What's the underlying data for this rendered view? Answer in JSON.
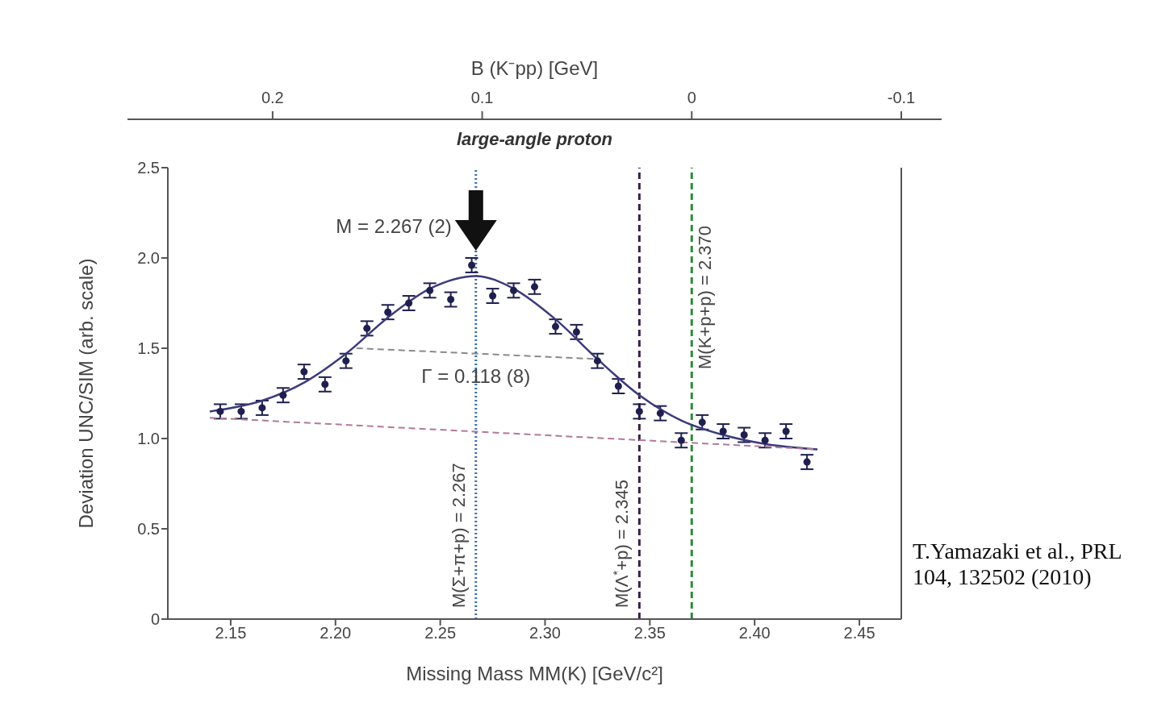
{
  "chart_data": {
    "type": "scatter",
    "title": "large-angle proton",
    "xlabel": "Missing Mass  MM(K)  [GeV/c²]",
    "ylabel": "Deviation  UNC/SIM  (arb. scale)",
    "x2label": "B (K⁻pp)   [GeV]",
    "xlim": [
      2.12,
      2.47
    ],
    "xticks": [
      2.15,
      {
        "value": 2.2,
        "label": "2.20"
      },
      2.25,
      {
        "value": 2.3,
        "label": "2.30"
      },
      2.35,
      {
        "value": 2.4,
        "label": "2.40"
      },
      2.45
    ],
    "x2lim": [
      0.25,
      -0.1
    ],
    "x2ticks": [
      0.2,
      0.1,
      0,
      -0.1
    ],
    "ylim": [
      0,
      2.5
    ],
    "yticks": [
      0,
      0.5,
      {
        "value": 1,
        "label": "1.0"
      },
      1.5,
      {
        "value": 2,
        "label": "2.0"
      },
      2.5
    ],
    "marker": "circle",
    "series": [
      {
        "color": "#1f1f4f",
        "x": [
          2.145,
          2.155,
          2.165,
          2.175,
          2.185,
          2.195,
          2.205,
          2.215,
          2.225,
          2.235,
          2.245,
          2.255,
          2.265,
          2.275,
          2.285,
          2.295,
          2.305,
          2.315,
          2.325,
          2.335,
          2.345,
          2.355,
          2.365,
          2.375,
          2.385,
          2.395,
          2.405,
          2.415,
          2.425
        ],
        "values": [
          1.15,
          1.15,
          1.17,
          1.24,
          1.37,
          1.3,
          1.43,
          1.61,
          1.7,
          1.75,
          1.82,
          1.77,
          1.96,
          1.79,
          1.82,
          1.84,
          1.62,
          1.59,
          1.43,
          1.29,
          1.15,
          1.14,
          0.99,
          1.09,
          1.04,
          1.02,
          0.99,
          1.04,
          0.87
        ],
        "errors": [
          0.04,
          0.04,
          0.04,
          0.04,
          0.04,
          0.04,
          0.04,
          0.04,
          0.04,
          0.04,
          0.04,
          0.04,
          0.04,
          0.04,
          0.04,
          0.04,
          0.04,
          0.04,
          0.04,
          0.04,
          0.04,
          0.04,
          0.04,
          0.04,
          0.04,
          0.04,
          0.04,
          0.04,
          0.04
        ]
      },
      {
        "type": "line",
        "color": "#3b3b7a",
        "marker": "none",
        "line_style": "solid",
        "x": [
          2.14,
          2.165,
          2.185,
          2.205,
          2.225,
          2.245,
          2.267,
          2.285,
          2.305,
          2.325,
          2.345,
          2.365,
          2.385,
          2.405,
          2.43
        ],
        "values": [
          1.15,
          1.21,
          1.31,
          1.47,
          1.67,
          1.83,
          1.9,
          1.83,
          1.66,
          1.44,
          1.24,
          1.1,
          1.02,
          0.97,
          0.94
        ]
      },
      {
        "type": "line",
        "color": "#b07a98",
        "marker": "none",
        "line_style": "dashed",
        "x": [
          2.14,
          2.43
        ],
        "values": [
          1.115,
          0.94
        ]
      },
      {
        "type": "line",
        "color": "#8a8a8a",
        "marker": "none",
        "line_style": "dashed",
        "x": [
          2.21,
          2.325
        ],
        "values": [
          1.5,
          1.44
        ]
      }
    ],
    "ref_lines": [
      {
        "axis": "x",
        "value": 2.267,
        "label": "M(Σ+π+p) = 2.267",
        "color": "#3a6ea5",
        "line_style": "dotted"
      },
      {
        "axis": "x",
        "value": 2.345,
        "label": "M(Λ$^{*}$+p) = 2.345",
        "color": "#3a1f4a",
        "line_style": "dashed"
      },
      {
        "axis": "x",
        "value": 2.37,
        "label": "M(K+p+p) = 2.370",
        "color": "#2e8b3a",
        "line_style": "dashed"
      }
    ],
    "annotations": [
      {
        "text": "M = 2.267 (2)",
        "x": 2.267,
        "y": 1.96
      },
      {
        "text": "Γ = 0.118 (8)",
        "x": 2.267,
        "y": 1.47
      },
      "T.Yamazaki et al., PRL 104, 132502 (2010)"
    ]
  }
}
